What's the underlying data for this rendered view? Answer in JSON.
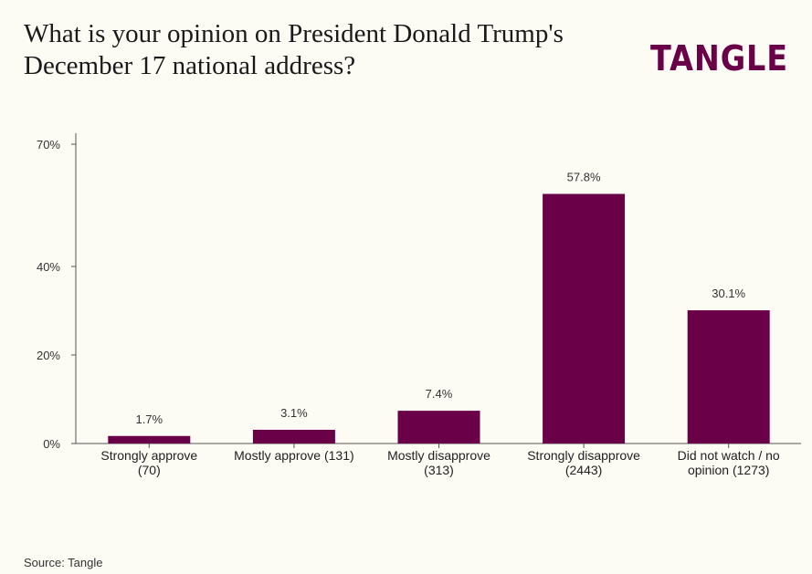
{
  "brand": {
    "logo_text": "TANGLE",
    "accent_color": "#6a0048"
  },
  "source": "Source: Tangle",
  "chart_data": {
    "type": "bar",
    "title_lines": [
      "What is your opinion on President Donald Trump's",
      "December 17 national address?"
    ],
    "categories": [
      [
        "Strongly approve",
        "(70)"
      ],
      [
        "Mostly approve (131)"
      ],
      [
        "Mostly disapprove",
        "(313)"
      ],
      [
        "Strongly disapprove",
        "(2443)"
      ],
      [
        "Did not watch / no",
        "opinion (1273)"
      ]
    ],
    "values": [
      1.7,
      3.1,
      7.4,
      57.8,
      30.1
    ],
    "data_labels": [
      "1.7%",
      "3.1%",
      "7.4%",
      "57.8%",
      "30.1%"
    ],
    "yticks": [
      {
        "value": 0,
        "label": "0%"
      },
      {
        "value": 20,
        "label": "20%"
      },
      {
        "value": 40,
        "label": "40%"
      },
      {
        "value": 70,
        "label": "70%"
      }
    ],
    "ylim": [
      0,
      70
    ],
    "grid": false,
    "bar_color": "#6a0048"
  }
}
